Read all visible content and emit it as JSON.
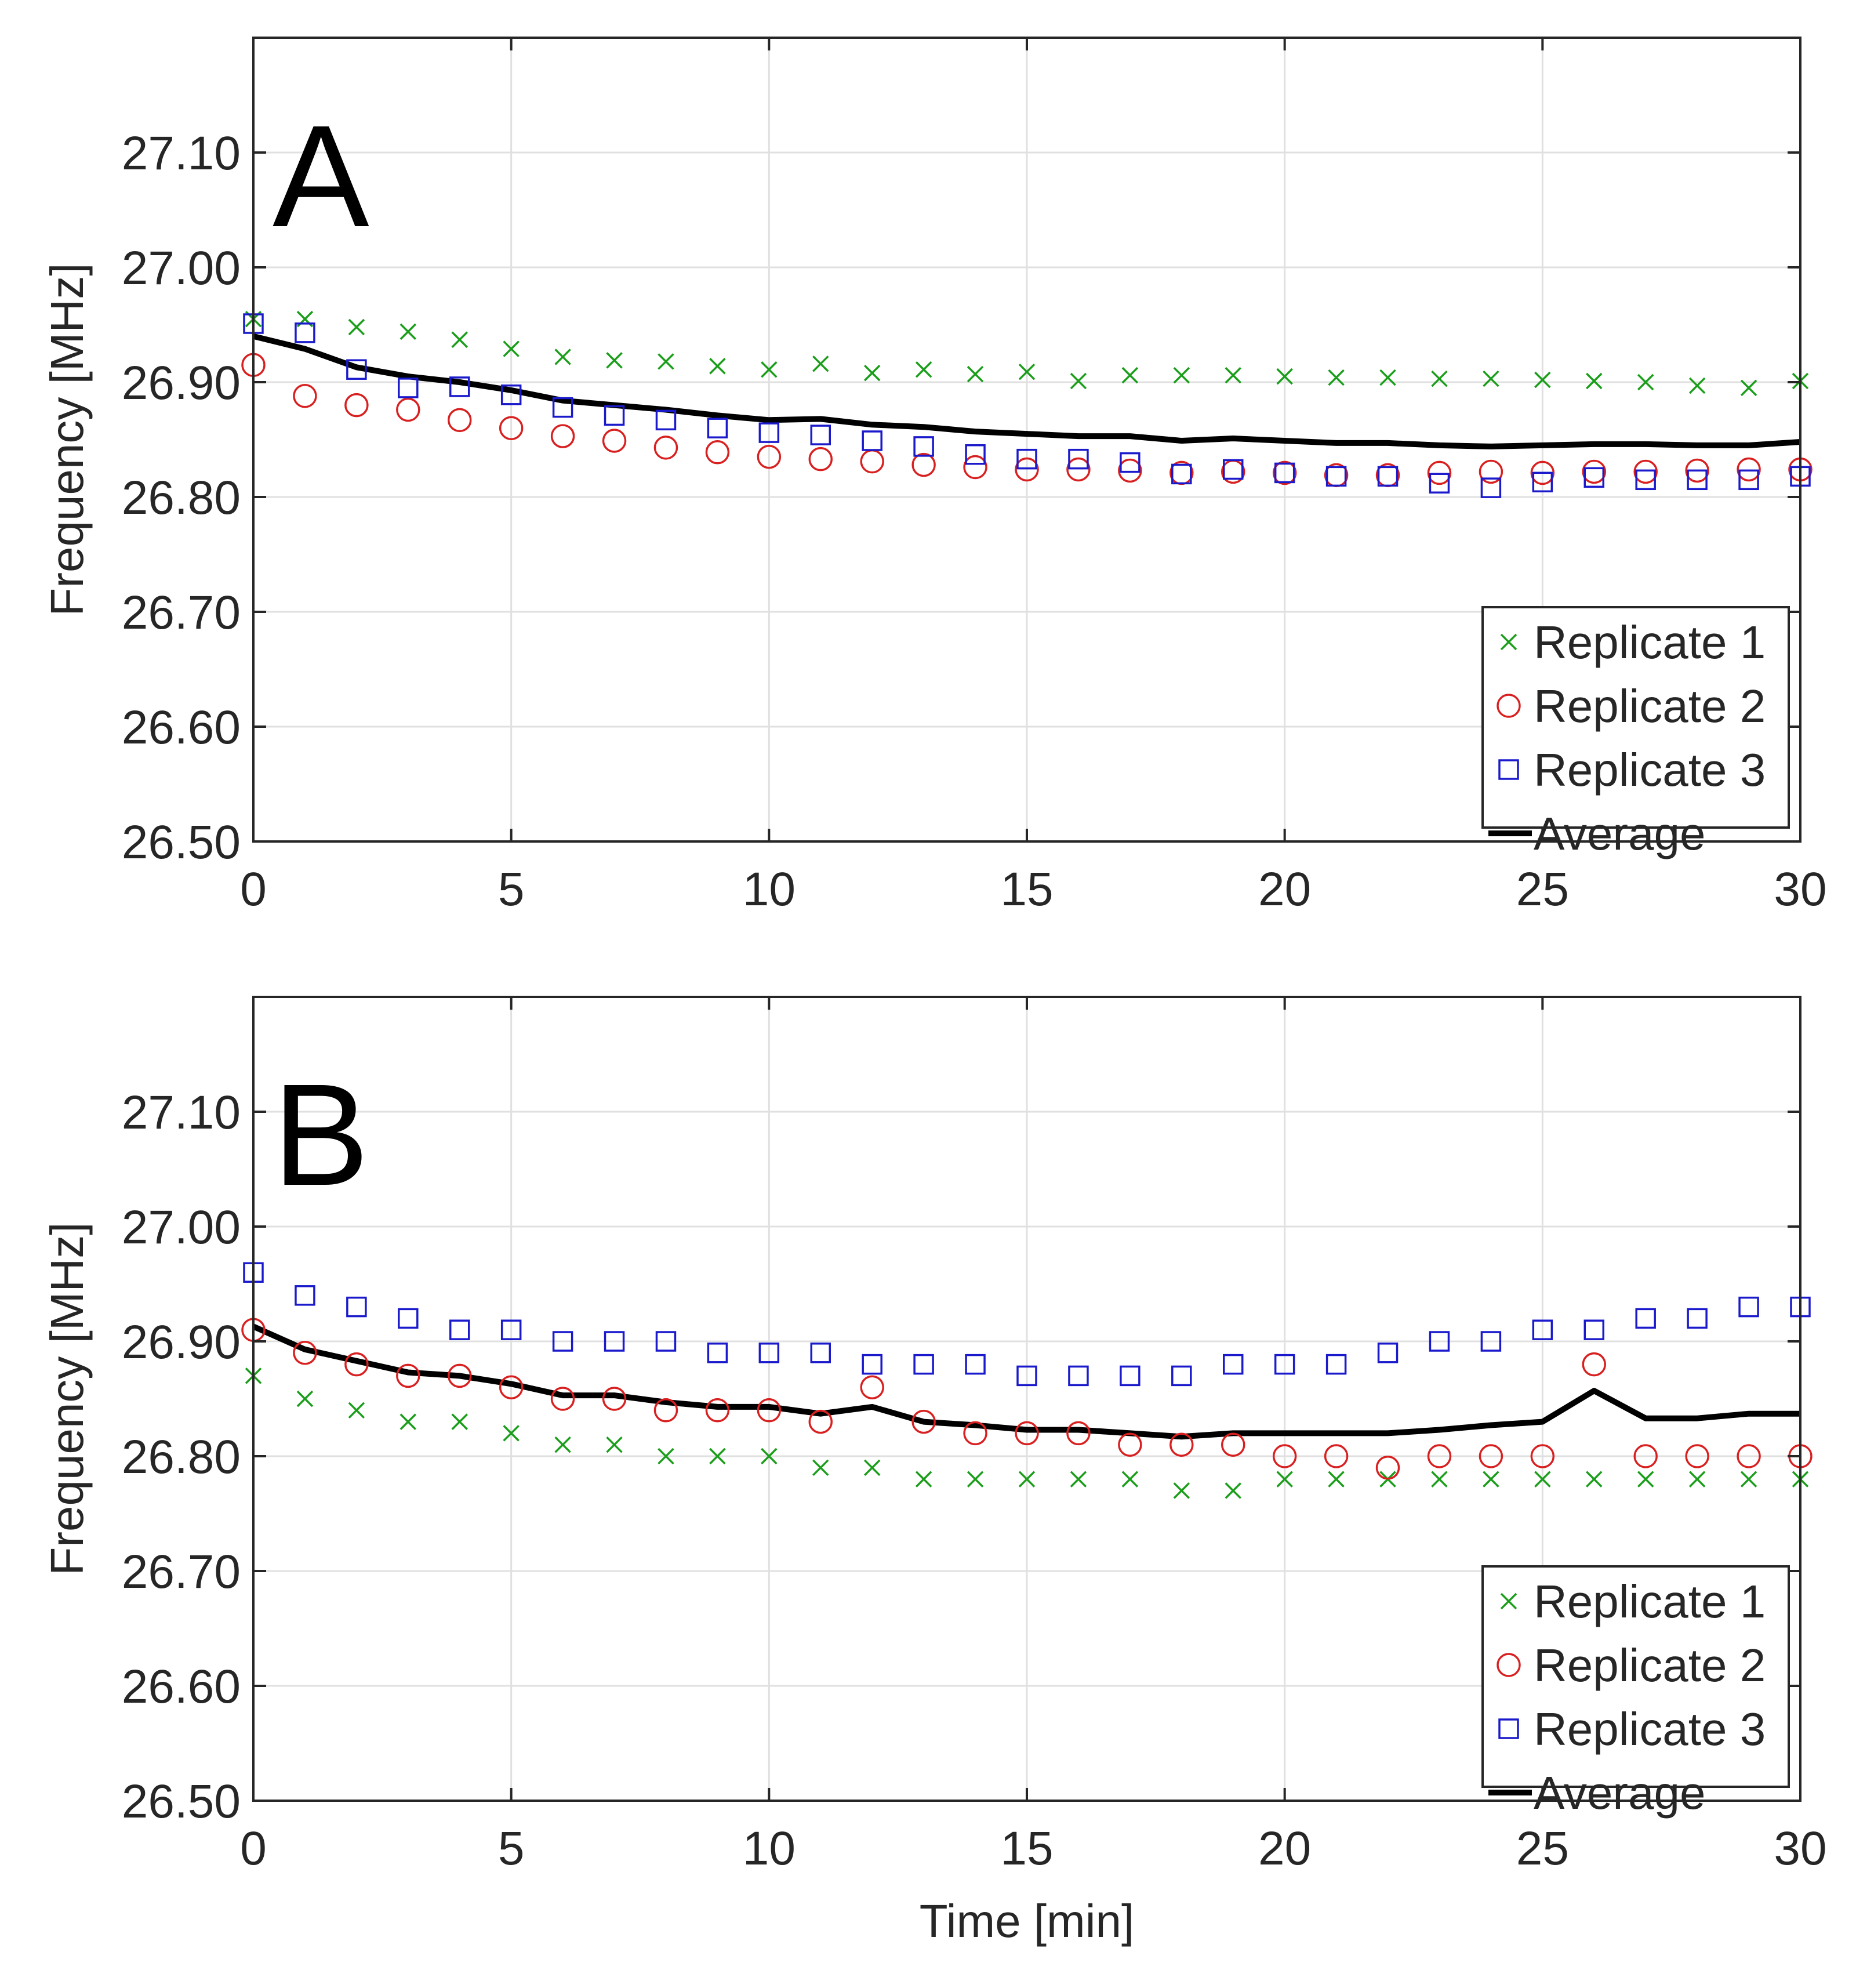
{
  "figure": {
    "panel_label_a": "A",
    "panel_label_b": "B",
    "ylabel": "Frequency [MHz]",
    "xlabel": "Time [min]"
  },
  "legend": {
    "replicate1": "Replicate 1",
    "replicate2": "Replicate 2",
    "replicate3": "Replicate 3",
    "average": "Average"
  },
  "colors": {
    "replicate1": "#1a9e1a",
    "replicate2": "#d92020",
    "replicate3": "#1a1acc",
    "average": "#000000",
    "grid": "#e0e0e0",
    "axis": "#262626"
  },
  "chart_data": [
    {
      "type": "scatter",
      "panel": "A",
      "xlabel": "",
      "ylabel": "Frequency [MHz]",
      "xlim": [
        0,
        30
      ],
      "ylim": [
        26.5,
        27.2
      ],
      "xticks": [
        "0",
        "5",
        "10",
        "15",
        "20",
        "25",
        "30"
      ],
      "yticks": [
        "26.50",
        "26.60",
        "26.70",
        "26.80",
        "26.90",
        "27.00",
        "27.10"
      ],
      "grid": true,
      "legend_position": "bottom-right",
      "x": [
        0,
        1,
        2,
        3,
        4,
        5,
        6,
        7,
        8,
        9,
        10,
        11,
        12,
        13,
        14,
        15,
        16,
        17,
        18,
        19,
        20,
        21,
        22,
        23,
        24,
        25,
        26,
        27,
        28,
        29,
        30
      ],
      "series": [
        {
          "name": "Replicate 1",
          "marker": "x",
          "values": [
            26.955,
            26.955,
            26.948,
            26.944,
            26.937,
            26.929,
            26.922,
            26.919,
            26.918,
            26.914,
            26.911,
            26.916,
            26.908,
            26.911,
            26.907,
            26.909,
            26.901,
            26.906,
            26.906,
            26.906,
            26.905,
            26.904,
            26.904,
            26.903,
            26.903,
            26.902,
            26.901,
            26.9,
            26.897,
            26.895,
            26.901
          ]
        },
        {
          "name": "Replicate 2",
          "marker": "o",
          "values": [
            26.915,
            26.888,
            26.88,
            26.876,
            26.867,
            26.86,
            26.853,
            26.849,
            26.843,
            26.839,
            26.835,
            26.833,
            26.831,
            26.828,
            26.826,
            26.824,
            26.824,
            26.823,
            26.821,
            26.822,
            26.821,
            26.819,
            26.819,
            26.821,
            26.822,
            26.821,
            26.822,
            26.822,
            26.823,
            26.824,
            26.824
          ]
        },
        {
          "name": "Replicate 3",
          "marker": "s",
          "values": [
            26.951,
            26.943,
            26.911,
            26.895,
            26.896,
            26.889,
            26.878,
            26.871,
            26.867,
            26.86,
            26.856,
            26.854,
            26.849,
            26.844,
            26.837,
            26.833,
            26.833,
            26.83,
            26.82,
            26.824,
            26.821,
            26.818,
            26.818,
            26.812,
            26.808,
            26.813,
            26.817,
            26.815,
            26.815,
            26.815,
            26.818
          ]
        },
        {
          "name": "Average",
          "marker": "line",
          "values": [
            26.94,
            26.929,
            26.913,
            26.905,
            26.9,
            26.893,
            26.884,
            26.88,
            26.876,
            26.871,
            26.867,
            26.868,
            26.863,
            26.861,
            26.857,
            26.855,
            26.853,
            26.853,
            26.849,
            26.851,
            26.849,
            26.847,
            26.847,
            26.845,
            26.844,
            26.845,
            26.846,
            26.846,
            26.845,
            26.845,
            26.848
          ]
        }
      ]
    },
    {
      "type": "scatter",
      "panel": "B",
      "xlabel": "Time [min]",
      "ylabel": "Frequency [MHz]",
      "xlim": [
        0,
        30
      ],
      "ylim": [
        26.5,
        27.2
      ],
      "xticks": [
        "0",
        "5",
        "10",
        "15",
        "20",
        "25",
        "30"
      ],
      "yticks": [
        "26.50",
        "26.60",
        "26.70",
        "26.80",
        "26.90",
        "27.00",
        "27.10"
      ],
      "grid": true,
      "legend_position": "bottom-right",
      "x": [
        0,
        1,
        2,
        3,
        4,
        5,
        6,
        7,
        8,
        9,
        10,
        11,
        12,
        13,
        14,
        15,
        16,
        17,
        18,
        19,
        20,
        21,
        22,
        23,
        24,
        25,
        26,
        27,
        28,
        29,
        30
      ],
      "series": [
        {
          "name": "Replicate 1",
          "marker": "x",
          "values": [
            26.87,
            26.85,
            26.84,
            26.83,
            26.83,
            26.82,
            26.81,
            26.81,
            26.8,
            26.8,
            26.8,
            26.79,
            26.79,
            26.78,
            26.78,
            26.78,
            26.78,
            26.78,
            26.77,
            26.77,
            26.78,
            26.78,
            26.78,
            26.78,
            26.78,
            26.78,
            26.78,
            26.78,
            26.78,
            26.78,
            26.78
          ]
        },
        {
          "name": "Replicate 2",
          "marker": "o",
          "values": [
            26.91,
            26.89,
            26.88,
            26.87,
            26.87,
            26.86,
            26.85,
            26.85,
            26.84,
            26.84,
            26.84,
            26.83,
            26.86,
            26.83,
            26.82,
            26.82,
            26.82,
            26.81,
            26.81,
            26.81,
            26.8,
            26.8,
            26.79,
            26.8,
            26.8,
            26.8,
            26.88,
            26.8,
            26.8,
            26.8,
            26.8
          ]
        },
        {
          "name": "Replicate 3",
          "marker": "s",
          "values": [
            26.96,
            26.94,
            26.93,
            26.92,
            26.91,
            26.91,
            26.9,
            26.9,
            26.9,
            26.89,
            26.89,
            26.89,
            26.88,
            26.88,
            26.88,
            26.87,
            26.87,
            26.87,
            26.87,
            26.88,
            26.88,
            26.88,
            26.89,
            26.9,
            26.9,
            26.91,
            26.91,
            26.92,
            26.92,
            26.93,
            26.93
          ]
        },
        {
          "name": "Average",
          "marker": "line",
          "values": [
            26.913,
            26.893,
            26.883,
            26.873,
            26.87,
            26.863,
            26.853,
            26.853,
            26.847,
            26.843,
            26.843,
            26.837,
            26.843,
            26.83,
            26.827,
            26.823,
            26.823,
            26.82,
            26.817,
            26.82,
            26.82,
            26.82,
            26.82,
            26.823,
            26.827,
            26.83,
            26.857,
            26.833,
            26.833,
            26.837,
            26.837
          ]
        }
      ]
    }
  ]
}
